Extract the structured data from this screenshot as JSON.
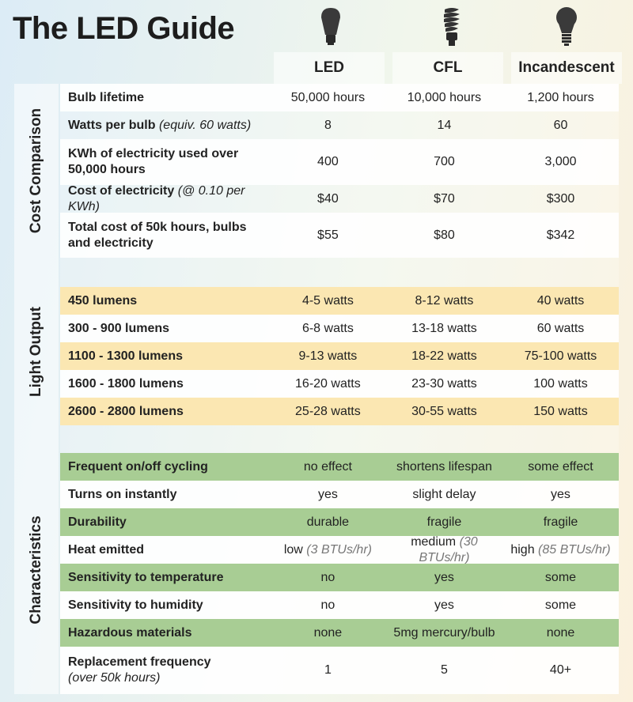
{
  "title": "The LED Guide",
  "columns": [
    "LED",
    "CFL",
    "Incandescent"
  ],
  "icons": [
    "led-bulb-icon",
    "cfl-bulb-icon",
    "incandescent-bulb-icon"
  ],
  "sections": {
    "cost": "Cost Comparison",
    "light": "Light Output",
    "characteristics": "Characteristics"
  },
  "cost_rows": [
    {
      "label": "Bulb lifetime",
      "note": "",
      "values": [
        "50,000 hours",
        "10,000 hours",
        "1,200 hours"
      ]
    },
    {
      "label": "Watts per bulb",
      "note": "(equiv. 60 watts)",
      "values": [
        "8",
        "14",
        "60"
      ]
    },
    {
      "label": "KWh of electricity used over 50,000 hours",
      "note": "",
      "values": [
        "400",
        "700",
        "3,000"
      ]
    },
    {
      "label": "Cost of electricity",
      "note": "(@ 0.10 per KWh)",
      "values": [
        "$40",
        "$70",
        "$300"
      ]
    },
    {
      "label": "Total cost of 50k hours, bulbs and electricity",
      "note": "",
      "values": [
        "$55",
        "$80",
        "$342"
      ]
    }
  ],
  "light_rows": [
    {
      "label": "450 lumens",
      "values": [
        "4-5 watts",
        "8-12 watts",
        "40 watts"
      ]
    },
    {
      "label": "300 - 900 lumens",
      "values": [
        "6-8 watts",
        "13-18 watts",
        "60 watts"
      ]
    },
    {
      "label": "1100 - 1300 lumens",
      "values": [
        "9-13 watts",
        "18-22 watts",
        "75-100 watts"
      ]
    },
    {
      "label": "1600 - 1800 lumens",
      "values": [
        "16-20 watts",
        "23-30 watts",
        "100 watts"
      ]
    },
    {
      "label": "2600 - 2800 lumens",
      "values": [
        "25-28 watts",
        "30-55 watts",
        "150 watts"
      ]
    }
  ],
  "char_rows": [
    {
      "label": "Frequent on/off cycling",
      "note": "",
      "values": [
        "no effect",
        "shortens lifespan",
        "some effect"
      ],
      "notes": [
        "",
        "",
        ""
      ]
    },
    {
      "label": "Turns on instantly",
      "note": "",
      "values": [
        "yes",
        "slight delay",
        "yes"
      ],
      "notes": [
        "",
        "",
        ""
      ]
    },
    {
      "label": "Durability",
      "note": "",
      "values": [
        "durable",
        "fragile",
        "fragile"
      ],
      "notes": [
        "",
        "",
        ""
      ]
    },
    {
      "label": "Heat emitted",
      "note": "",
      "values": [
        "low",
        "medium",
        "high"
      ],
      "notes": [
        "(3 BTUs/hr)",
        "(30 BTUs/hr)",
        "(85 BTUs/hr)"
      ]
    },
    {
      "label": "Sensitivity to temperature",
      "note": "",
      "values": [
        "no",
        "yes",
        "some"
      ],
      "notes": [
        "",
        "",
        ""
      ]
    },
    {
      "label": "Sensitivity to humidity",
      "note": "",
      "values": [
        "no",
        "yes",
        "some"
      ],
      "notes": [
        "",
        "",
        ""
      ]
    },
    {
      "label": "Hazardous materials",
      "note": "",
      "values": [
        "none",
        "5mg mercury/bulb",
        "none"
      ],
      "notes": [
        "",
        "",
        ""
      ]
    },
    {
      "label": "Replacement frequency",
      "note": "(over 50k hours)",
      "values": [
        "1",
        "5",
        "40+"
      ],
      "notes": [
        "",
        "",
        ""
      ]
    }
  ]
}
